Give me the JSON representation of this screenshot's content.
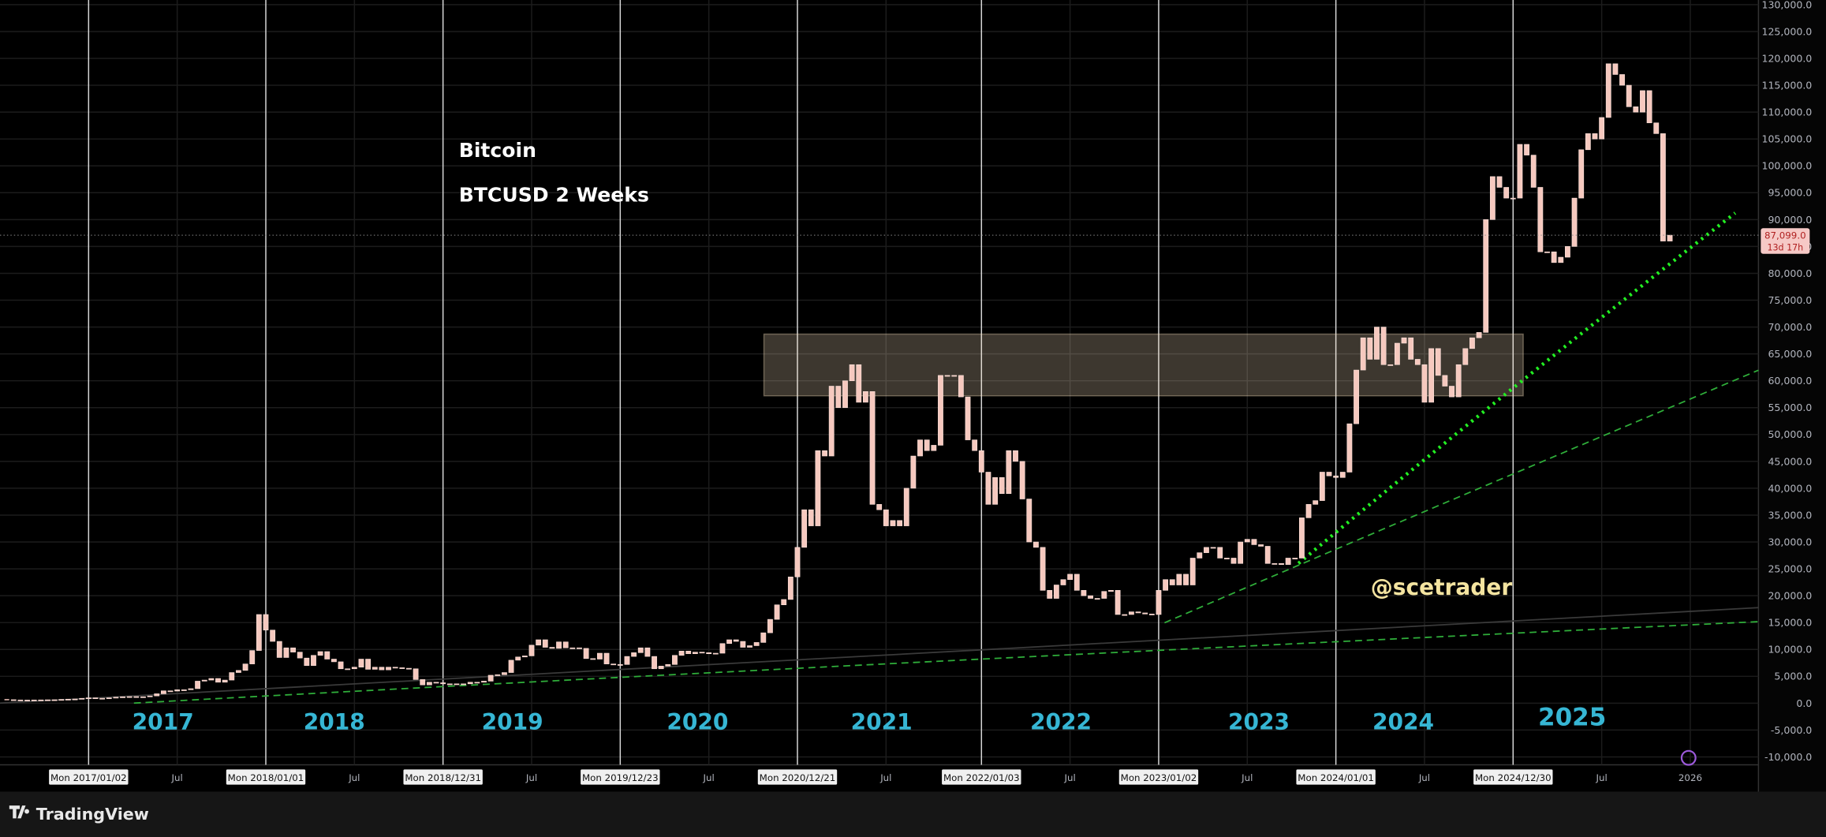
{
  "chart_data": {
    "type": "candlestick",
    "title": "Bitcoin",
    "subtitle": "BTCUSD 2 Weeks",
    "annotation": "@scetrader",
    "brand": "TradingView",
    "period_labels": [
      "2017",
      "2018",
      "2019",
      "2020",
      "2021",
      "2022",
      "2023",
      "2024",
      "2025"
    ],
    "color": "#f6c9bf",
    "grid": true,
    "categories": [
      null,
      null,
      null,
      null,
      null,
      null,
      null,
      null,
      null,
      null,
      null,
      null,
      null,
      null,
      null,
      null,
      null,
      null,
      null,
      null,
      null,
      null,
      null,
      null,
      null,
      null,
      null,
      null,
      null,
      null,
      null,
      null,
      null,
      null,
      null,
      null,
      null,
      null,
      null,
      null,
      null,
      null,
      null,
      null,
      null,
      null,
      null,
      null,
      null,
      null,
      null,
      null,
      null,
      null,
      null,
      null,
      null,
      null,
      null,
      null,
      null,
      null,
      null,
      null,
      null,
      null,
      null,
      null,
      null,
      null,
      null,
      null,
      null,
      null,
      null,
      null,
      null,
      null,
      null,
      null,
      null,
      null,
      null,
      null,
      null,
      null,
      null,
      null,
      null,
      null,
      null,
      null,
      null,
      null,
      null,
      null,
      null,
      null,
      null,
      null,
      null,
      null,
      null,
      null,
      null,
      null,
      null,
      null,
      null,
      null,
      null,
      null,
      null,
      null,
      null,
      null,
      null,
      null,
      null,
      null,
      null,
      null,
      null,
      null,
      null,
      null,
      null,
      null,
      null,
      null,
      null,
      null,
      null,
      null,
      null,
      null,
      null,
      null,
      null,
      null,
      null,
      null,
      null,
      null,
      null,
      null,
      null,
      null,
      null,
      null,
      null,
      null,
      null,
      null,
      null,
      null,
      null,
      null,
      null,
      null,
      null,
      null,
      null,
      null,
      null,
      null,
      null,
      null,
      null,
      null,
      null,
      null,
      null,
      null,
      null,
      null,
      null,
      null,
      null,
      null,
      null,
      null,
      null,
      null,
      null,
      null,
      null,
      null,
      null,
      null,
      null,
      null,
      null,
      null,
      null,
      null,
      null,
      null,
      null,
      null,
      null,
      null,
      null,
      null,
      null,
      null,
      null,
      null,
      null,
      null,
      null,
      null,
      null,
      null,
      null,
      null,
      null,
      null,
      null,
      null,
      null,
      null,
      null,
      null,
      null,
      null,
      null,
      null,
      null,
      null,
      null,
      null,
      null,
      null,
      null,
      null,
      null,
      null,
      null,
      null,
      null,
      null,
      null,
      null,
      null
    ],
    "values": [
      650,
      600,
      580,
      570,
      600,
      610,
      630,
      640,
      700,
      740,
      780,
      900,
      1000,
      900,
      920,
      1000,
      1120,
      1190,
      1230,
      1080,
      1200,
      1350,
      1750,
      2300,
      2250,
      2500,
      2500,
      2700,
      4100,
      4300,
      4600,
      3900,
      4300,
      5700,
      6100,
      7300,
      9800,
      16500,
      13600,
      11500,
      8500,
      10300,
      9500,
      8400,
      7000,
      8900,
      9600,
      8200,
      7700,
      6400,
      6400,
      6700,
      8200,
      6300,
      6700,
      6200,
      6700,
      6600,
      6500,
      6400,
      4400,
      3400,
      3900,
      3800,
      3600,
      3600,
      3500,
      3600,
      3900,
      3900,
      4100,
      5200,
      5300,
      5700,
      8000,
      8600,
      8800,
      10800,
      11800,
      10400,
      10200,
      11400,
      10300,
      10300,
      10200,
      8300,
      8200,
      9300,
      7300,
      7200,
      7200,
      8700,
      9400,
      10300,
      8700,
      6400,
      6900,
      7200,
      8900,
      9700,
      9200,
      9500,
      9400,
      9200,
      9300,
      11100,
      11800,
      11500,
      10400,
      10700,
      11300,
      13100,
      15600,
      18300,
      19300,
      23500,
      29000,
      36000,
      33000,
      47000,
      46000,
      59000,
      55000,
      60000,
      63000,
      56000,
      58000,
      37000,
      36000,
      33000,
      34000,
      33000,
      40000,
      46000,
      49000,
      47000,
      48000,
      61000,
      61000,
      61000,
      57000,
      49000,
      47000,
      43000,
      37000,
      42000,
      39000,
      47000,
      45000,
      38000,
      30000,
      29000,
      21000,
      19500,
      22000,
      23000,
      24000,
      21000,
      20000,
      19500,
      19500,
      20800,
      21000,
      16500,
      16500,
      17000,
      16800,
      16600,
      16500,
      21000,
      23000,
      22000,
      24000,
      22000,
      27000,
      28000,
      29000,
      29000,
      27000,
      27000,
      26000,
      30000,
      30500,
      29500,
      29200,
      26000,
      26000,
      25800,
      27000,
      27000,
      34500,
      37000,
      37700,
      43000,
      42300,
      42000,
      43000,
      52000,
      62000,
      68000,
      64000,
      70000,
      63000,
      63000,
      67000,
      68000,
      64000,
      63000,
      56000,
      66000,
      61000,
      59000,
      57000,
      63000,
      66000,
      68000,
      69000,
      90000,
      98000,
      96000,
      94000,
      94000,
      104000,
      102000,
      96000,
      84000,
      84000,
      82000,
      83000,
      85000,
      94000,
      103000,
      106000,
      105000,
      109000,
      119000,
      117000,
      115000,
      111000,
      110000,
      114000,
      108000,
      106000,
      86000,
      87099
    ],
    "current_price": {
      "value": 87099,
      "label": "87,099.0"
    },
    "countdown": "13d 17h",
    "xlim": [
      -1,
      257
    ],
    "xticks": [
      {
        "value": 12,
        "label": "Mon 2017/01/02"
      },
      {
        "value": 25,
        "label": "Jul"
      },
      {
        "value": 38,
        "label": "Mon 2018/01/01"
      },
      {
        "value": 51,
        "label": "Jul"
      },
      {
        "value": 64,
        "label": "Mon 2018/12/31"
      },
      {
        "value": 77,
        "label": "Jul"
      },
      {
        "value": 90,
        "label": "Mon 2019/12/23"
      },
      {
        "value": 103,
        "label": "Jul"
      },
      {
        "value": 116,
        "label": "Mon 2020/12/21"
      },
      {
        "value": 129,
        "label": "Jul"
      },
      {
        "value": 143,
        "label": "Mon 2022/01/03"
      },
      {
        "value": 156,
        "label": "Jul"
      },
      {
        "value": 169,
        "label": "Mon 2023/01/02"
      },
      {
        "value": 182,
        "label": "Jul"
      },
      {
        "value": 195,
        "label": "Mon 2024/01/01"
      },
      {
        "value": 208,
        "label": "Jul"
      },
      {
        "value": 221,
        "label": "Mon 2024/12/30"
      },
      {
        "value": 234,
        "label": "Jul"
      },
      {
        "value": 247,
        "label": "2026"
      }
    ],
    "ylim": [
      -10000,
      130000
    ],
    "yticks": [
      {
        "value": -10000,
        "label": "-10,000.0"
      },
      {
        "value": -5000,
        "label": "-5,000.0"
      },
      {
        "value": 0,
        "label": "0.0"
      },
      {
        "value": 5000,
        "label": "5,000.0"
      },
      {
        "value": 10000,
        "label": "10,000.0"
      },
      {
        "value": 15000,
        "label": "15,000.0"
      },
      {
        "value": 20000,
        "label": "20,000.0"
      },
      {
        "value": 25000,
        "label": "25,000.0"
      },
      {
        "value": 30000,
        "label": "30,000.0"
      },
      {
        "value": 35000,
        "label": "35,000.0"
      },
      {
        "value": 40000,
        "label": "40,000.0"
      },
      {
        "value": 45000,
        "label": "45,000.0"
      },
      {
        "value": 50000,
        "label": "50,000.0"
      },
      {
        "value": 55000,
        "label": "55,000.0"
      },
      {
        "value": 60000,
        "label": "60,000.0"
      },
      {
        "value": 65000,
        "label": "65,000.0"
      },
      {
        "value": 70000,
        "label": "70,000.0"
      },
      {
        "value": 75000,
        "label": "75,000.0"
      },
      {
        "value": 80000,
        "label": "80,000.0"
      },
      {
        "value": 85000,
        "label": "85,000.0"
      },
      {
        "value": 90000,
        "label": "90,000.0"
      },
      {
        "value": 95000,
        "label": "95,000.0"
      },
      {
        "value": 100000,
        "label": "100,000.0"
      },
      {
        "value": 105000,
        "label": "105,000.0"
      },
      {
        "value": 110000,
        "label": "110,000.0"
      },
      {
        "value": 115000,
        "label": "115,000.0"
      },
      {
        "value": 120000,
        "label": "120,000.0"
      },
      {
        "value": 125000,
        "label": "125,000.0"
      },
      {
        "value": 130000,
        "label": "130,000.0"
      }
    ]
  }
}
